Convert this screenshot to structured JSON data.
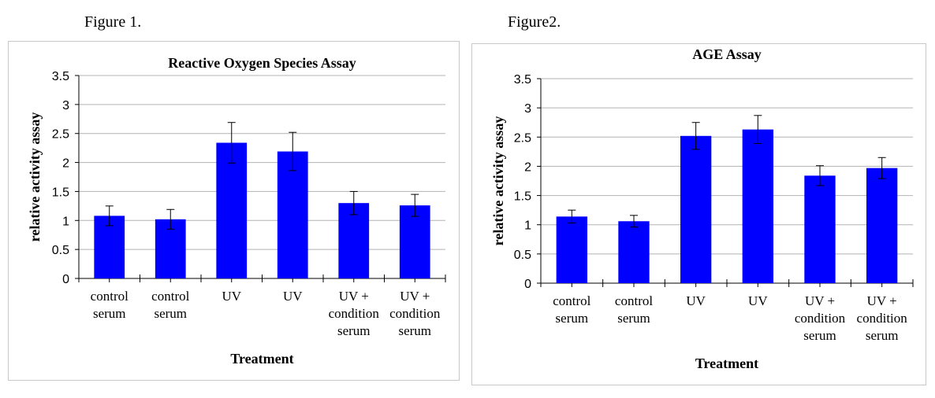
{
  "figures": [
    {
      "caption": "Figure 1."
    },
    {
      "caption": "Figure2."
    }
  ],
  "chart_data": [
    {
      "type": "bar",
      "title": "Reactive Oxygen Species Assay",
      "xlabel": "Treatment",
      "ylabel": "relative activity assay",
      "ylim": [
        0,
        3.5
      ],
      "yticks": [
        "0",
        "0.5",
        "1",
        "1.5",
        "2",
        "2.5",
        "3",
        "3.5"
      ],
      "categories": [
        [
          "control",
          "serum"
        ],
        [
          "control",
          "serum"
        ],
        [
          "UV"
        ],
        [
          "UV"
        ],
        [
          "UV +",
          "condition",
          "serum"
        ],
        [
          "UV +",
          "condition",
          "serum"
        ]
      ],
      "values": [
        1.08,
        1.02,
        2.34,
        2.19,
        1.3,
        1.26
      ],
      "errors": [
        0.17,
        0.17,
        0.35,
        0.33,
        0.2,
        0.19
      ],
      "bar_color": "#0000ff",
      "grid": true
    },
    {
      "type": "bar",
      "title": "AGE Assay",
      "xlabel": "Treatment",
      "ylabel": "relative activity assay",
      "ylim": [
        0,
        3.5
      ],
      "yticks": [
        "0",
        "0.5",
        "1",
        "1.5",
        "2",
        "2.5",
        "3",
        "3.5"
      ],
      "categories": [
        [
          "control",
          "serum"
        ],
        [
          "control",
          "serum"
        ],
        [
          "UV"
        ],
        [
          "UV"
        ],
        [
          "UV +",
          "condition",
          "serum"
        ],
        [
          "UV +",
          "condition",
          "serum"
        ]
      ],
      "values": [
        1.14,
        1.06,
        2.52,
        2.63,
        1.84,
        1.97
      ],
      "errors": [
        0.11,
        0.1,
        0.23,
        0.24,
        0.17,
        0.18
      ],
      "bar_color": "#0000ff",
      "grid": true
    }
  ]
}
